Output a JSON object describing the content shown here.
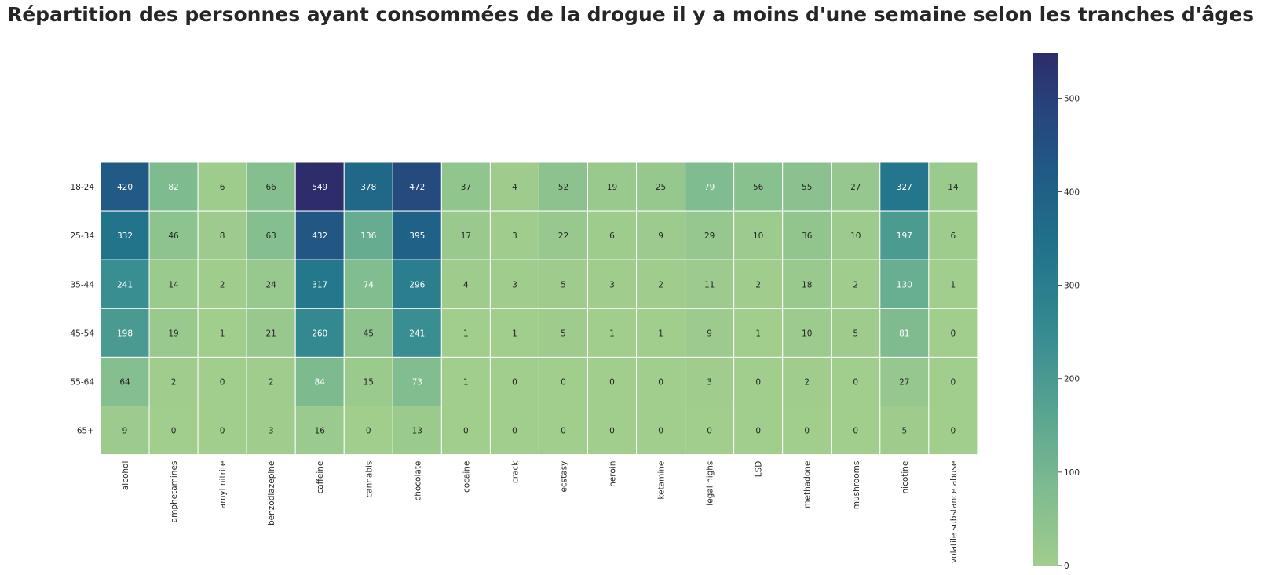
{
  "chart_data": {
    "type": "heatmap",
    "title": "Répartition des personnes ayant consommées de la drogue il y a moins d'une semaine selon les tranches d'âges",
    "rows": [
      "18-24",
      "25-34",
      "35-44",
      "45-54",
      "55-64",
      "65+"
    ],
    "columns": [
      "alcohol",
      "amphetamines",
      "amyl nitrite",
      "benzodiazepine",
      "caffeine",
      "cannabis",
      "chocolate",
      "cocaine",
      "crack",
      "ecstasy",
      "heroin",
      "ketamine",
      "legal highs",
      "LSD",
      "methadone",
      "mushrooms",
      "nicotine",
      "volatile substance abuse"
    ],
    "values": [
      [
        420,
        82,
        6,
        66,
        549,
        378,
        472,
        37,
        4,
        52,
        19,
        25,
        79,
        56,
        55,
        27,
        327,
        14
      ],
      [
        332,
        46,
        8,
        63,
        432,
        136,
        395,
        17,
        3,
        22,
        6,
        9,
        29,
        10,
        36,
        10,
        197,
        6
      ],
      [
        241,
        14,
        2,
        24,
        317,
        74,
        296,
        4,
        3,
        5,
        3,
        2,
        11,
        2,
        18,
        2,
        130,
        1
      ],
      [
        198,
        19,
        1,
        21,
        260,
        45,
        241,
        1,
        1,
        5,
        1,
        1,
        9,
        1,
        10,
        5,
        81,
        0
      ],
      [
        64,
        2,
        0,
        2,
        84,
        15,
        73,
        1,
        0,
        0,
        0,
        0,
        3,
        0,
        2,
        0,
        27,
        0
      ],
      [
        9,
        0,
        0,
        3,
        16,
        0,
        13,
        0,
        0,
        0,
        0,
        0,
        0,
        0,
        0,
        0,
        5,
        0
      ]
    ],
    "colormap": "crest_r",
    "colorbar": {
      "min": 0,
      "max": 549,
      "ticks": [
        0,
        100,
        200,
        300,
        400,
        500
      ]
    },
    "annotated": true,
    "grid": false
  }
}
